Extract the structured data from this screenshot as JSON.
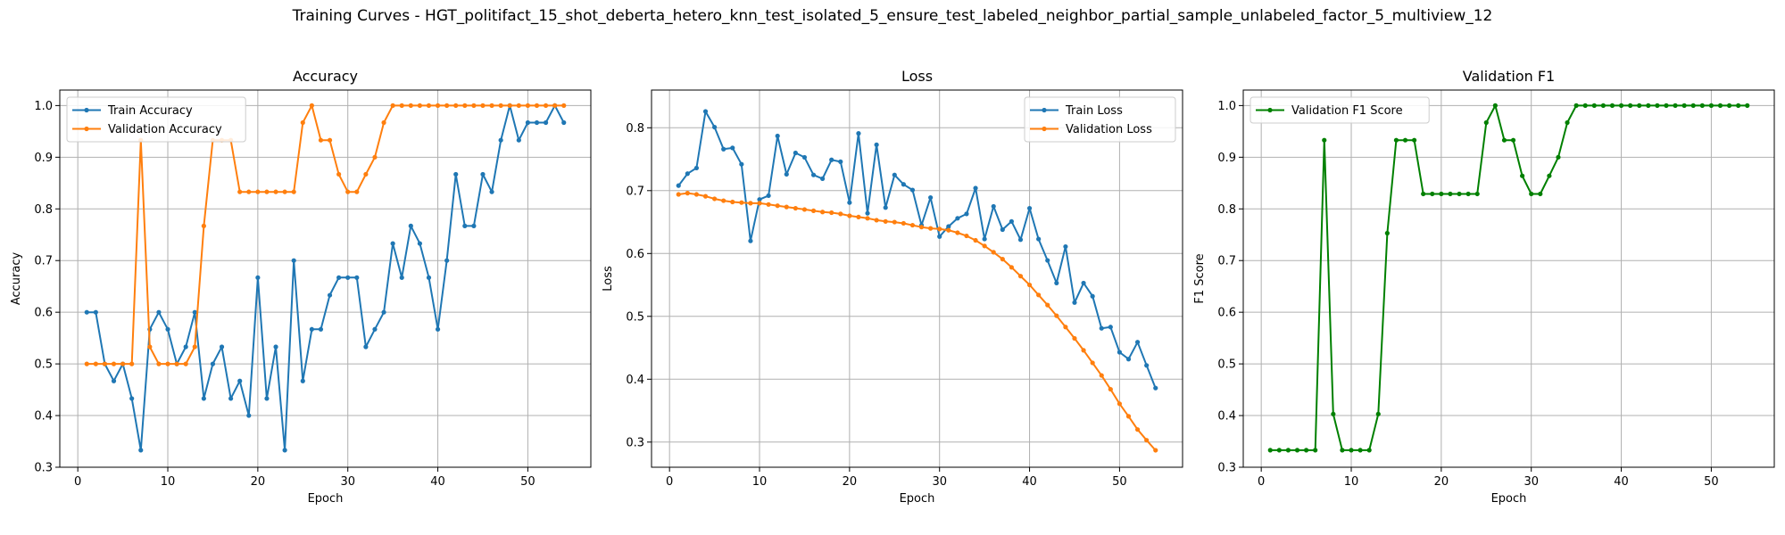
{
  "figure": {
    "suptitle": "Training Curves - HGT_politifact_15_shot_deberta_hetero_knn_test_isolated_5_ensure_test_labeled_neighbor_partial_sample_unlabeled_factor_5_multiview_12"
  },
  "colors": {
    "blue": "#1f77b4",
    "orange": "#ff7f0e",
    "green": "#008000",
    "grid": "#b0b0b0"
  },
  "chart_data": [
    {
      "type": "line",
      "title": "Accuracy",
      "xlabel": "Epoch",
      "ylabel": "Accuracy",
      "xlim": [
        -2,
        57
      ],
      "ylim": [
        0.3,
        1.03
      ],
      "xticks": [
        0,
        10,
        20,
        30,
        40,
        50
      ],
      "yticks": [
        0.3,
        0.4,
        0.5,
        0.6,
        0.7,
        0.8,
        0.9,
        1.0
      ],
      "grid": true,
      "legend": "top-left",
      "series": [
        {
          "name": "Train Accuracy",
          "color": "#1f77b4",
          "x": [
            1,
            2,
            3,
            4,
            5,
            6,
            7,
            8,
            9,
            10,
            11,
            12,
            13,
            14,
            15,
            16,
            17,
            18,
            19,
            20,
            21,
            22,
            23,
            24,
            25,
            26,
            27,
            28,
            29,
            30,
            31,
            32,
            33,
            34,
            35,
            36,
            37,
            38,
            39,
            40,
            41,
            42,
            43,
            44,
            45,
            46,
            47,
            48,
            49,
            50,
            51,
            52,
            53,
            54
          ],
          "values": [
            0.6,
            0.6,
            0.5,
            0.467,
            0.5,
            0.433,
            0.333,
            0.567,
            0.6,
            0.567,
            0.5,
            0.533,
            0.6,
            0.433,
            0.5,
            0.533,
            0.433,
            0.467,
            0.4,
            0.667,
            0.433,
            0.533,
            0.333,
            0.7,
            0.467,
            0.567,
            0.567,
            0.633,
            0.667,
            0.667,
            0.667,
            0.533,
            0.567,
            0.6,
            0.733,
            0.667,
            0.767,
            0.733,
            0.667,
            0.567,
            0.7,
            0.867,
            0.767,
            0.767,
            0.867,
            0.833,
            0.933,
            1.0,
            0.933,
            0.967,
            0.967,
            0.967,
            1.0,
            0.967
          ]
        },
        {
          "name": "Validation Accuracy",
          "color": "#ff7f0e",
          "x": [
            1,
            2,
            3,
            4,
            5,
            6,
            7,
            8,
            9,
            10,
            11,
            12,
            13,
            14,
            15,
            16,
            17,
            18,
            19,
            20,
            21,
            22,
            23,
            24,
            25,
            26,
            27,
            28,
            29,
            30,
            31,
            32,
            33,
            34,
            35,
            36,
            37,
            38,
            39,
            40,
            41,
            42,
            43,
            44,
            45,
            46,
            47,
            48,
            49,
            50,
            51,
            52,
            53,
            54
          ],
          "values": [
            0.5,
            0.5,
            0.5,
            0.5,
            0.5,
            0.5,
            0.933,
            0.533,
            0.5,
            0.5,
            0.5,
            0.5,
            0.533,
            0.767,
            0.933,
            0.933,
            0.933,
            0.833,
            0.833,
            0.833,
            0.833,
            0.833,
            0.833,
            0.833,
            0.967,
            1.0,
            0.933,
            0.933,
            0.867,
            0.833,
            0.833,
            0.867,
            0.9,
            0.967,
            1.0,
            1.0,
            1.0,
            1.0,
            1.0,
            1.0,
            1.0,
            1.0,
            1.0,
            1.0,
            1.0,
            1.0,
            1.0,
            1.0,
            1.0,
            1.0,
            1.0,
            1.0,
            1.0,
            1.0
          ]
        }
      ]
    },
    {
      "type": "line",
      "title": "Loss",
      "xlabel": "Epoch",
      "ylabel": "Loss",
      "xlim": [
        -2,
        57
      ],
      "ylim": [
        0.26,
        0.86
      ],
      "xticks": [
        0,
        10,
        20,
        30,
        40,
        50
      ],
      "yticks": [
        0.3,
        0.4,
        0.5,
        0.6,
        0.7,
        0.8
      ],
      "grid": true,
      "legend": "top-right",
      "series": [
        {
          "name": "Train Loss",
          "color": "#1f77b4",
          "x": [
            1,
            2,
            3,
            4,
            5,
            6,
            7,
            8,
            9,
            10,
            11,
            12,
            13,
            14,
            15,
            16,
            17,
            18,
            19,
            20,
            21,
            22,
            23,
            24,
            25,
            26,
            27,
            28,
            29,
            30,
            31,
            32,
            33,
            34,
            35,
            36,
            37,
            38,
            39,
            40,
            41,
            42,
            43,
            44,
            45,
            46,
            47,
            48,
            49,
            50,
            51,
            52,
            53,
            54
          ],
          "values": [
            0.708,
            0.727,
            0.736,
            0.826,
            0.801,
            0.766,
            0.768,
            0.742,
            0.62,
            0.686,
            0.692,
            0.787,
            0.726,
            0.76,
            0.753,
            0.725,
            0.719,
            0.749,
            0.746,
            0.681,
            0.791,
            0.664,
            0.773,
            0.673,
            0.725,
            0.71,
            0.701,
            0.645,
            0.689,
            0.627,
            0.643,
            0.656,
            0.663,
            0.704,
            0.623,
            0.675,
            0.638,
            0.651,
            0.622,
            0.672,
            0.623,
            0.589,
            0.553,
            0.611,
            0.522,
            0.553,
            0.532,
            0.481,
            0.483,
            0.443,
            0.432,
            0.459,
            0.422,
            0.386
          ]
        },
        {
          "name": "Validation Loss",
          "color": "#ff7f0e",
          "x": [
            1,
            2,
            3,
            4,
            5,
            6,
            7,
            8,
            9,
            10,
            11,
            12,
            13,
            14,
            15,
            16,
            17,
            18,
            19,
            20,
            21,
            22,
            23,
            24,
            25,
            26,
            27,
            28,
            29,
            30,
            31,
            32,
            33,
            34,
            35,
            36,
            37,
            38,
            39,
            40,
            41,
            42,
            43,
            44,
            45,
            46,
            47,
            48,
            49,
            50,
            51,
            52,
            53,
            54
          ],
          "values": [
            0.694,
            0.696,
            0.694,
            0.691,
            0.687,
            0.684,
            0.682,
            0.681,
            0.68,
            0.68,
            0.678,
            0.676,
            0.674,
            0.672,
            0.67,
            0.668,
            0.666,
            0.665,
            0.663,
            0.66,
            0.658,
            0.656,
            0.653,
            0.651,
            0.65,
            0.648,
            0.645,
            0.642,
            0.64,
            0.639,
            0.637,
            0.633,
            0.628,
            0.621,
            0.612,
            0.602,
            0.591,
            0.578,
            0.564,
            0.55,
            0.534,
            0.518,
            0.501,
            0.483,
            0.465,
            0.446,
            0.426,
            0.406,
            0.384,
            0.361,
            0.341,
            0.32,
            0.303,
            0.287
          ]
        }
      ]
    },
    {
      "type": "line",
      "title": "Validation F1",
      "xlabel": "Epoch",
      "ylabel": "F1 Score",
      "xlim": [
        -2,
        57
      ],
      "ylim": [
        0.3,
        1.03
      ],
      "xticks": [
        0,
        10,
        20,
        30,
        40,
        50
      ],
      "yticks": [
        0.3,
        0.4,
        0.5,
        0.6,
        0.7,
        0.8,
        0.9,
        1.0
      ],
      "grid": true,
      "legend": "top-left",
      "series": [
        {
          "name": "Validation F1 Score",
          "color": "#008000",
          "x": [
            1,
            2,
            3,
            4,
            5,
            6,
            7,
            8,
            9,
            10,
            11,
            12,
            13,
            14,
            15,
            16,
            17,
            18,
            19,
            20,
            21,
            22,
            23,
            24,
            25,
            26,
            27,
            28,
            29,
            30,
            31,
            32,
            33,
            34,
            35,
            36,
            37,
            38,
            39,
            40,
            41,
            42,
            43,
            44,
            45,
            46,
            47,
            48,
            49,
            50,
            51,
            52,
            53,
            54
          ],
          "values": [
            0.333,
            0.333,
            0.333,
            0.333,
            0.333,
            0.333,
            0.933,
            0.403,
            0.333,
            0.333,
            0.333,
            0.333,
            0.403,
            0.753,
            0.933,
            0.933,
            0.933,
            0.829,
            0.829,
            0.829,
            0.829,
            0.829,
            0.829,
            0.829,
            0.967,
            1.0,
            0.933,
            0.933,
            0.864,
            0.829,
            0.829,
            0.864,
            0.9,
            0.967,
            1.0,
            1.0,
            1.0,
            1.0,
            1.0,
            1.0,
            1.0,
            1.0,
            1.0,
            1.0,
            1.0,
            1.0,
            1.0,
            1.0,
            1.0,
            1.0,
            1.0,
            1.0,
            1.0,
            1.0
          ]
        }
      ]
    }
  ]
}
